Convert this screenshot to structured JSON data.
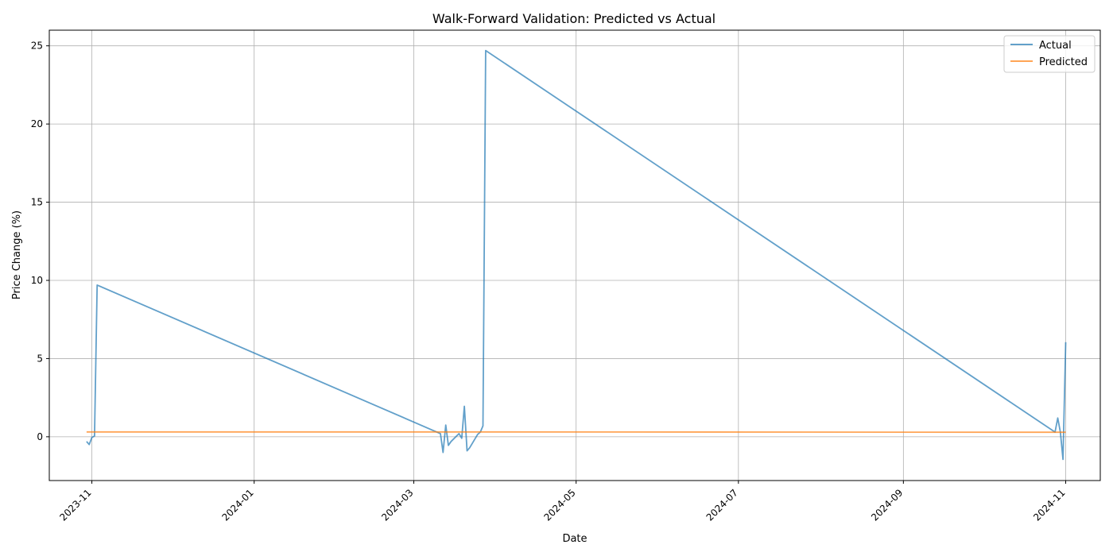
{
  "chart_data": {
    "type": "line",
    "title": "Walk-Forward Validation: Predicted vs Actual",
    "xlabel": "Date",
    "ylabel": "Price Change (%)",
    "xlim": [
      "2023-10-16",
      "2024-11-14"
    ],
    "ylim": [
      -2.8,
      26.0
    ],
    "grid": true,
    "legend_position": "top-right",
    "x_ticks": [
      "2023-11",
      "2024-01",
      "2024-03",
      "2024-05",
      "2024-07",
      "2024-09",
      "2024-11"
    ],
    "y_ticks": [
      0,
      5,
      10,
      15,
      20,
      25
    ],
    "series": [
      {
        "name": "Actual",
        "color": "#1f77b4",
        "x": [
          "2023-10-30",
          "2023-10-31",
          "2023-11-01",
          "2023-11-02",
          "2023-11-03",
          "2024-03-11",
          "2024-03-12",
          "2024-03-13",
          "2024-03-14",
          "2024-03-15",
          "2024-03-18",
          "2024-03-19",
          "2024-03-20",
          "2024-03-21",
          "2024-03-22",
          "2024-03-25",
          "2024-03-26",
          "2024-03-27",
          "2024-03-28",
          "2024-10-28",
          "2024-10-29",
          "2024-10-30",
          "2024-10-31",
          "2024-11-01"
        ],
        "values": [
          -0.3,
          -0.5,
          -0.05,
          0.05,
          9.7,
          0.2,
          -1.0,
          0.75,
          -0.55,
          -0.3,
          0.2,
          -0.1,
          1.95,
          -0.9,
          -0.7,
          0.15,
          0.3,
          0.7,
          24.7,
          0.3,
          1.2,
          0.3,
          -1.45,
          6.05
        ]
      },
      {
        "name": "Predicted",
        "color": "#ff7f0e",
        "x": [
          "2023-10-30",
          "2024-03-11",
          "2024-03-28",
          "2024-10-28",
          "2024-11-01"
        ],
        "values": [
          0.31,
          0.31,
          0.31,
          0.29,
          0.29
        ]
      }
    ]
  }
}
